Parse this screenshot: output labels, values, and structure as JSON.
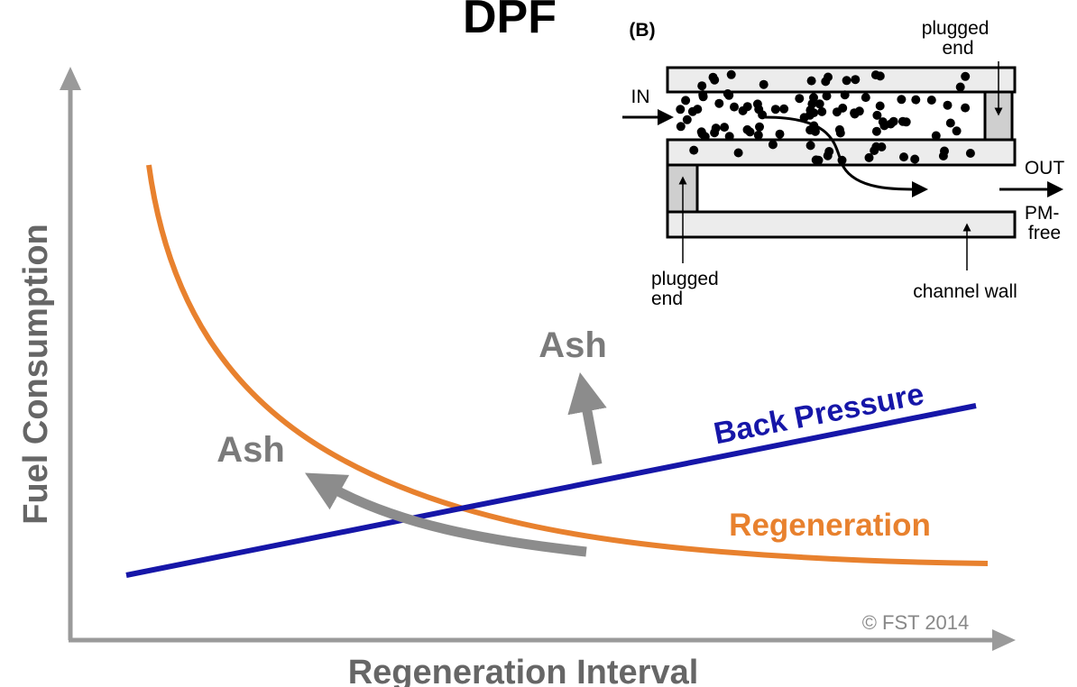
{
  "title": "DPF",
  "axes": {
    "x_label": "Regeneration Interval",
    "y_label": "Fuel Consumption"
  },
  "curves": [
    {
      "label": "Back Pressure"
    },
    {
      "label": "Regeneration"
    }
  ],
  "annotations": [
    {
      "label": "Ash"
    },
    {
      "label": "Ash"
    }
  ],
  "copyright": "© FST 2014",
  "inset": {
    "panel_label": "(B)",
    "plugged_end_top": {
      "lines": [
        "plugged",
        "end"
      ]
    },
    "inlet": "IN",
    "outlet": "OUT",
    "outlet_note": {
      "lines": [
        "PM-",
        "free"
      ]
    },
    "plugged_end_bottom": {
      "lines": [
        "plugged",
        "end"
      ]
    },
    "channel_wall": "channel wall"
  }
}
